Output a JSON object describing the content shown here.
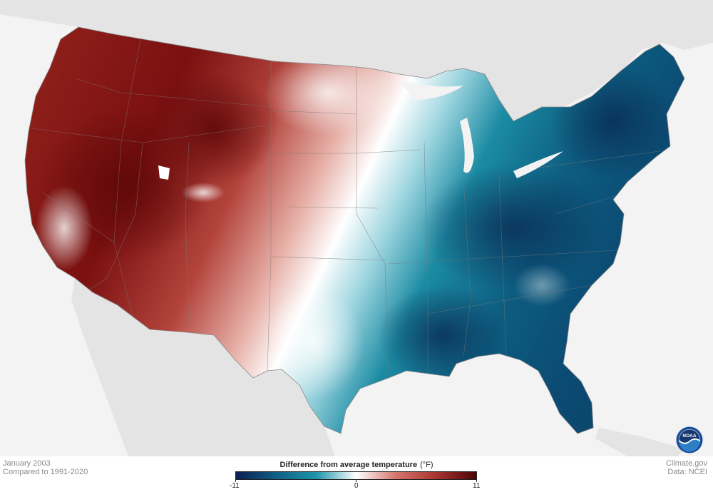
{
  "map": {
    "period": "January 2003",
    "baseline": "Compared to 1991-2020",
    "credit_site": "Climate.gov",
    "credit_data": "Data: NCEI"
  },
  "legend": {
    "title": "Difference from average temperature",
    "unit": "(°F)",
    "min_label": "-11",
    "mid_label": "0",
    "max_label": "11",
    "min": -11,
    "max": 11,
    "colors": [
      "#0b1f4f",
      "#0f5f86",
      "#1c95ab",
      "#ffffff",
      "#d5756d",
      "#a8332e",
      "#4b0505"
    ]
  },
  "logo": {
    "name": "NOAA",
    "label": "NOAA"
  },
  "anomaly_summary": [
    {
      "region": "West",
      "sign": "warm"
    },
    {
      "region": "Great Plains",
      "sign": "near average"
    },
    {
      "region": "East",
      "sign": "cold"
    }
  ]
}
